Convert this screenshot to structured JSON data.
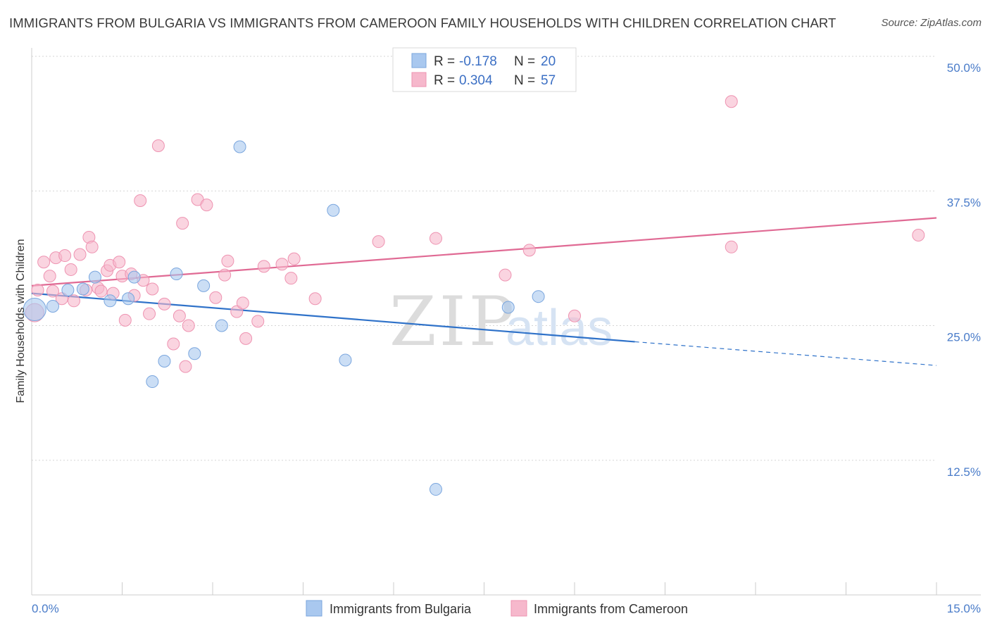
{
  "title": "IMMIGRANTS FROM BULGARIA VS IMMIGRANTS FROM CAMEROON FAMILY HOUSEHOLDS WITH CHILDREN CORRELATION CHART",
  "source": "Source: ZipAtlas.com",
  "watermark": {
    "zip": "ZIP",
    "atlas": "atlas"
  },
  "legend": {
    "rows": [
      {
        "r_label": "R = ",
        "r_value": "-0.178",
        "n_label": "N = ",
        "n_value": "20",
        "color": "#a9c8ef"
      },
      {
        "r_label": "R = ",
        "r_value": "0.304",
        "n_label": "N = ",
        "n_value": "57",
        "color": "#f6b8cc"
      }
    ]
  },
  "chart_data": {
    "type": "scatter",
    "ylabel": "Family Households with Children",
    "xlim": [
      0,
      15
    ],
    "ylim": [
      0,
      50
    ],
    "x_tick_labels": [
      "0.0%",
      "15.0%"
    ],
    "y_ticks": [
      12.5,
      25.0,
      37.5,
      50.0
    ],
    "y_tick_labels": [
      "12.5%",
      "25.0%",
      "37.5%",
      "50.0%"
    ],
    "grid": "horizontal dashed",
    "legend_position": "top-center",
    "series": [
      {
        "name": "Immigrants from Bulgaria",
        "color": "#a9c8ef",
        "stroke": "#7aa6de",
        "line_color": "#2f72c9",
        "trend": {
          "x0": 0.0,
          "y0": 28.0,
          "x1": 10.0,
          "y1": 23.5,
          "dash_to_x": 15.0,
          "dash_to_y": 21.3
        },
        "points": [
          [
            0.05,
            26.5
          ],
          [
            0.35,
            26.8
          ],
          [
            0.6,
            28.3
          ],
          [
            0.85,
            28.4
          ],
          [
            1.05,
            29.5
          ],
          [
            1.3,
            27.3
          ],
          [
            1.6,
            27.5
          ],
          [
            1.7,
            29.5
          ],
          [
            2.0,
            19.8
          ],
          [
            2.2,
            21.7
          ],
          [
            2.4,
            29.8
          ],
          [
            2.7,
            22.4
          ],
          [
            2.85,
            28.7
          ],
          [
            3.15,
            25.0
          ],
          [
            3.45,
            41.6
          ],
          [
            5.0,
            35.7
          ],
          [
            5.2,
            21.8
          ],
          [
            6.7,
            9.8
          ],
          [
            7.9,
            26.7
          ],
          [
            8.4,
            27.7
          ]
        ]
      },
      {
        "name": "Immigrants from Cameroon",
        "color": "#f6b8cc",
        "stroke": "#ee93b1",
        "line_color": "#e06a94",
        "trend": {
          "x0": 0.0,
          "y0": 28.7,
          "x1": 15.0,
          "y1": 35.0
        },
        "points": [
          [
            0.05,
            26.2
          ],
          [
            0.1,
            28.3
          ],
          [
            0.2,
            30.9
          ],
          [
            0.3,
            29.6
          ],
          [
            0.35,
            28.2
          ],
          [
            0.4,
            31.3
          ],
          [
            0.5,
            27.5
          ],
          [
            0.55,
            31.5
          ],
          [
            0.65,
            30.2
          ],
          [
            0.7,
            27.3
          ],
          [
            0.8,
            31.6
          ],
          [
            0.9,
            28.3
          ],
          [
            0.95,
            33.2
          ],
          [
            1.0,
            32.3
          ],
          [
            1.1,
            28.5
          ],
          [
            1.15,
            28.2
          ],
          [
            1.25,
            30.1
          ],
          [
            1.3,
            30.6
          ],
          [
            1.35,
            28.0
          ],
          [
            1.45,
            30.9
          ],
          [
            1.5,
            29.6
          ],
          [
            1.55,
            25.5
          ],
          [
            1.65,
            29.8
          ],
          [
            1.7,
            27.8
          ],
          [
            1.8,
            36.6
          ],
          [
            1.85,
            29.2
          ],
          [
            1.95,
            26.1
          ],
          [
            2.0,
            28.4
          ],
          [
            2.1,
            41.7
          ],
          [
            2.2,
            27.0
          ],
          [
            2.35,
            23.3
          ],
          [
            2.45,
            25.9
          ],
          [
            2.5,
            34.5
          ],
          [
            2.55,
            21.2
          ],
          [
            2.6,
            25.0
          ],
          [
            2.75,
            36.7
          ],
          [
            2.9,
            36.2
          ],
          [
            3.05,
            27.6
          ],
          [
            3.2,
            29.7
          ],
          [
            3.25,
            31.0
          ],
          [
            3.4,
            26.3
          ],
          [
            3.5,
            27.1
          ],
          [
            3.55,
            23.8
          ],
          [
            3.75,
            25.4
          ],
          [
            3.85,
            30.5
          ],
          [
            4.15,
            30.7
          ],
          [
            4.3,
            29.4
          ],
          [
            4.35,
            31.2
          ],
          [
            4.7,
            27.5
          ],
          [
            5.75,
            32.8
          ],
          [
            6.7,
            33.1
          ],
          [
            7.85,
            29.7
          ],
          [
            8.25,
            32.0
          ],
          [
            9.0,
            25.9
          ],
          [
            11.6,
            45.8
          ],
          [
            11.6,
            32.3
          ],
          [
            14.7,
            33.4
          ]
        ]
      }
    ]
  }
}
